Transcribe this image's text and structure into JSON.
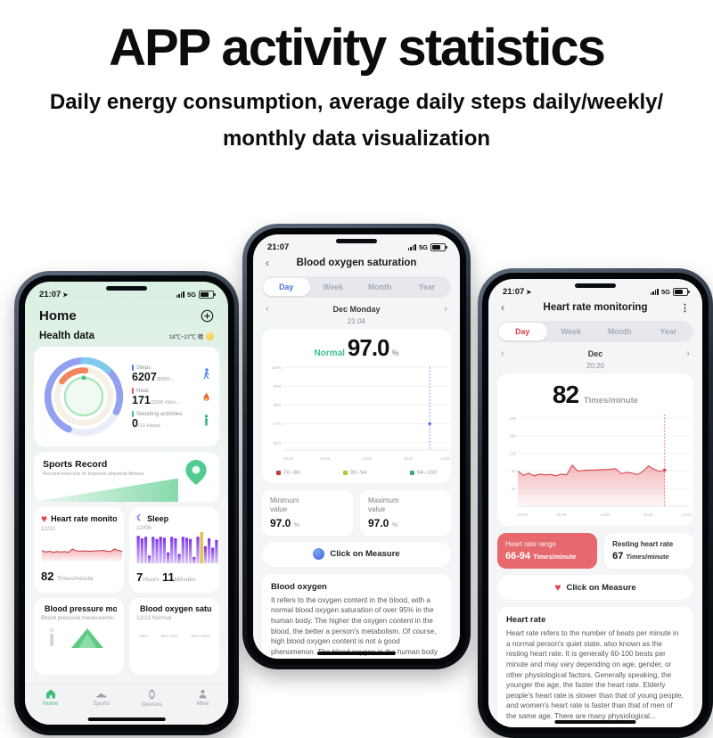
{
  "header": {
    "title": "APP activity statistics",
    "subtitle1": "Daily energy consumption, average daily steps daily/weekly/",
    "subtitle2": "monthly data visualization"
  },
  "colors": {
    "green": "#3dbf7c",
    "red": "#d9454e",
    "blue": "#4a6ee0",
    "purple": "#8b34ee",
    "legend_red": "#c23a34",
    "legend_yellow_green": "#b5c832",
    "legend_green": "#3fa97c"
  },
  "home": {
    "time": "21:07",
    "net": "5G",
    "title": "Home",
    "health_title": "Health data",
    "weather": "18℃~27℃ 晴",
    "stats": [
      {
        "label": "Steps",
        "value": "6207",
        "suffix": "/8000...",
        "icon": "walker-icon"
      },
      {
        "label": "Heat",
        "value": "171",
        "suffix": "/2000 Kiloc...",
        "icon": "flame-icon"
      },
      {
        "label": "Standing activities",
        "value": "0",
        "suffix": "/10 Hours",
        "icon": "standing-person-icon"
      }
    ],
    "sports_title": "Sports Record",
    "sports_sub": "Record exercise to improve physical fitness",
    "heart_card": {
      "title": "Heart rate monitoring",
      "date": "12/11",
      "value": "82",
      "unit": "Times/minute"
    },
    "sleep_card": {
      "title": "Sleep",
      "date": "12/09",
      "hours": "7",
      "hours_label": "Hours",
      "minutes": "11",
      "minutes_label": "Minutes"
    },
    "bp_card": {
      "title": "Blood pressure monitoring",
      "sub": "Blood pressure measureme..."
    },
    "ox_card": {
      "title": "Blood oxygen saturation",
      "date": "12/11 Normal",
      "labels": [
        "~90%",
        "90%~94%",
        "94%~100%"
      ]
    },
    "tabs": [
      "Home",
      "Sports",
      "Devices",
      "Mine"
    ]
  },
  "oxygen": {
    "time": "21:07",
    "net": "5G",
    "title": "Blood oxygen saturation",
    "tabs": [
      "Day",
      "Week",
      "Month",
      "Year"
    ],
    "date": "Dec Monday",
    "time_small": "21:04",
    "status": "Normal",
    "value": "97.0",
    "unit": "%",
    "legend": [
      {
        "label": "70~90",
        "color": "#c23a34"
      },
      {
        "label": "90~94",
        "color": "#b5c832"
      },
      {
        "label": "94~100",
        "color": "#3fa97c"
      }
    ],
    "min_label": "Minimum value",
    "min_value": "97.0",
    "min_unit": "%",
    "max_label": "Maximum value",
    "max_value": "97.0",
    "max_unit": "%",
    "measure": "Click on Measure",
    "info_title": "Blood oxygen",
    "info_text": "It refers to the oxygen content in the blood, with a normal blood oxygen saturation of over 95% in the human body. The higher the oxygen content in the blood, the better a person's metabolism. Of course, high blood oxygen content is not a good phenomenon. The blood oxygen in the human body has a certain degree of saturation. If it is too low, it will cause insufficient oxygen supply to the body, and if it is too high, it will lead to cell aging in the body."
  },
  "heart": {
    "time": "21:07",
    "net": "5G",
    "title": "Heart rate monitoring",
    "tabs": [
      "Day",
      "Week",
      "Month",
      "Year"
    ],
    "date": "Dec",
    "time_small": "20:20",
    "value": "82",
    "unit": "Times/minute",
    "range_label": "Heart rate range",
    "range_value": "66-94",
    "range_unit": "Times/minute",
    "rest_label": "Resting heart rate",
    "rest_value": "67",
    "rest_unit": "Times/minute",
    "measure": "Click on Measure",
    "info_title": "Heart rate",
    "info_text": "Heart rate refers to the number of beats per minute in a normal person's quiet state, also known as the resting heart rate. It is generally 60-100 beats per minute and may vary depending on age, gender, or other physiological factors. Generally speaking, the younger the age, the faster the heart rate. Elderly people's heart rate is slower than that of young people, and women's heart rate is faster than that of men of the same age. There are many physiological..."
  },
  "chart_data": [
    {
      "name": "blood_oxygen_day",
      "type": "scatter",
      "title": "Blood oxygen saturation - Day",
      "y_ticks": [
        "100%",
        "99%",
        "98%",
        "97%",
        "96%"
      ],
      "y_tick_vals": [
        100,
        99,
        98,
        97,
        96
      ],
      "x_ticks": [
        "00:00",
        "06:00",
        "12:00",
        "18:00",
        "24:00"
      ],
      "ylim": [
        95.6,
        100
      ],
      "xlim": [
        0,
        24
      ],
      "points": [
        {
          "x": 21.07,
          "y": 97.0
        }
      ],
      "marker_color": "#4a6ee0",
      "margins": {
        "l": 18,
        "r": 7,
        "t": 6,
        "b": 13
      }
    },
    {
      "name": "heart_rate_day",
      "type": "area",
      "title": "Heart rate - Day (Times/minute)",
      "y_ticks": [
        "200",
        "160",
        "120",
        "80",
        "40"
      ],
      "y_tick_vals": [
        200,
        160,
        120,
        80,
        40
      ],
      "x_ticks": [
        "00:00",
        "06:00",
        "12:00",
        "18:00",
        "24:00"
      ],
      "ylim": [
        0,
        208
      ],
      "x_span": 0.845,
      "values": [
        80,
        70,
        75,
        69,
        73,
        71,
        72,
        69,
        73,
        71,
        93,
        80,
        81,
        82,
        82,
        83,
        83,
        84,
        85,
        74,
        77,
        75,
        72,
        79,
        91,
        84,
        79,
        82
      ],
      "line_color": "#d9454e",
      "fill": "url(#ghb)",
      "cursor": true,
      "margins": {
        "l": 17,
        "r": 8,
        "t": 6,
        "b": 13
      }
    },
    {
      "name": "home_heart_mini",
      "type": "area",
      "ylim": [
        40,
        115
      ],
      "values": [
        70,
        66,
        68,
        65,
        67,
        66,
        67,
        65,
        74,
        69,
        68,
        69,
        68,
        68,
        69,
        69,
        70,
        68,
        67,
        74,
        70,
        68
      ],
      "line_color": "#c9464d",
      "fill": "url(#ghm)",
      "margins": {
        "l": 1,
        "r": 1,
        "t": 2,
        "b": 1
      }
    },
    {
      "name": "home_sleep",
      "type": "bar",
      "ylim": [
        0,
        1
      ],
      "bars": [
        0.88,
        0.8,
        0.85,
        0.25,
        0.85,
        0.78,
        0.85,
        0.82,
        0.35,
        0.85,
        0.8,
        0.3,
        0.85,
        0.82,
        0.78,
        0.2,
        0.85,
        1.0,
        0.55,
        0.8,
        0.5,
        0.75
      ],
      "bar_color": "url(#gsl)",
      "bar_colors": {
        "17": "#e2bf3a"
      },
      "margins": {
        "l": 0,
        "r": 0,
        "t": 1,
        "b": 0
      }
    },
    {
      "name": "home_oxygen_segments",
      "type": "segments",
      "segments": [
        {
          "color": "#41c463",
          "frac": 0.42
        },
        {
          "color": "#f2b33d",
          "frac": 0.33
        },
        {
          "color": "#e04343",
          "frac": 0.25
        }
      ],
      "margins": {
        "l": 0,
        "r": 0,
        "t": 0,
        "b": 0
      }
    }
  ]
}
